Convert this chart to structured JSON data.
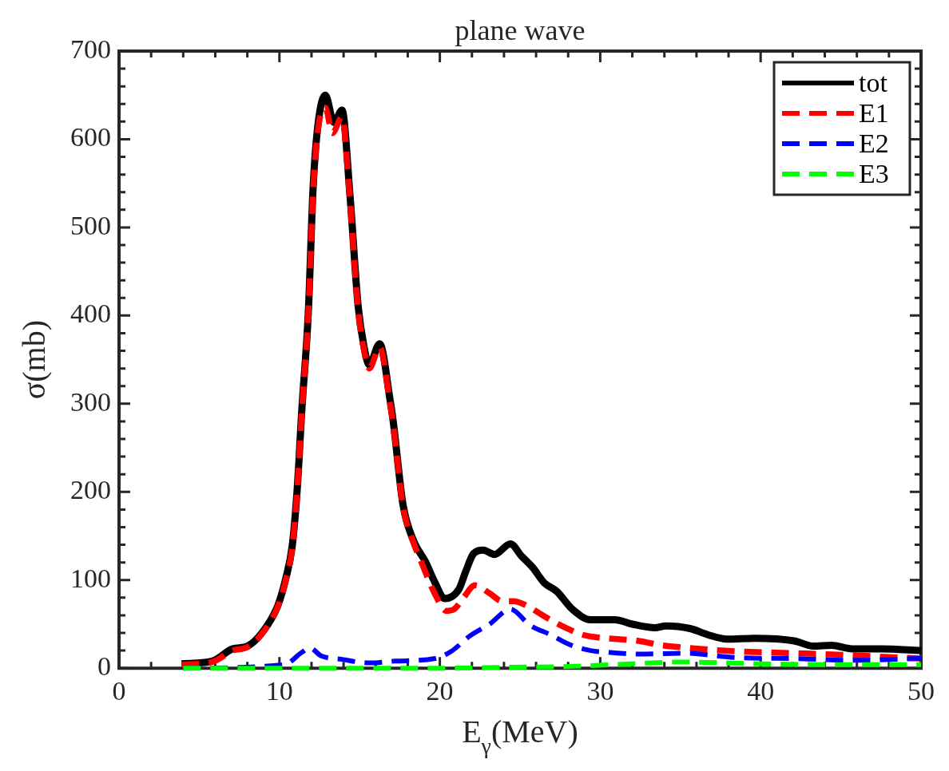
{
  "chart_data": {
    "type": "line",
    "title": "plane wave",
    "xlabel": "E$_{γ}$(MeV)",
    "ylabel": "σ(mb)",
    "xlim": [
      0,
      50
    ],
    "xticks": [
      0,
      {
        "value": 2,
        "label": null
      },
      {
        "value": 4,
        "label": null
      },
      {
        "value": 6,
        "label": null
      },
      {
        "value": 8,
        "label": null
      },
      10,
      {
        "value": 12,
        "label": null
      },
      {
        "value": 14,
        "label": null
      },
      {
        "value": 16,
        "label": null
      },
      {
        "value": 18,
        "label": null
      },
      20,
      {
        "value": 22,
        "label": null
      },
      {
        "value": 24,
        "label": null
      },
      {
        "value": 26,
        "label": null
      },
      {
        "value": 28,
        "label": null
      },
      30,
      {
        "value": 32,
        "label": null
      },
      {
        "value": 34,
        "label": null
      },
      {
        "value": 36,
        "label": null
      },
      {
        "value": 38,
        "label": null
      },
      40,
      {
        "value": 42,
        "label": null
      },
      {
        "value": 44,
        "label": null
      },
      {
        "value": 46,
        "label": null
      },
      {
        "value": 48,
        "label": null
      },
      50
    ],
    "ylim": [
      0,
      700
    ],
    "yticks": [
      0,
      {
        "value": 20,
        "label": null
      },
      {
        "value": 40,
        "label": null
      },
      {
        "value": 60,
        "label": null
      },
      {
        "value": 80,
        "label": null
      },
      100,
      {
        "value": 120,
        "label": null
      },
      {
        "value": 140,
        "label": null
      },
      {
        "value": 160,
        "label": null
      },
      {
        "value": 180,
        "label": null
      },
      200,
      {
        "value": 220,
        "label": null
      },
      {
        "value": 240,
        "label": null
      },
      {
        "value": 260,
        "label": null
      },
      {
        "value": 280,
        "label": null
      },
      300,
      {
        "value": 320,
        "label": null
      },
      {
        "value": 340,
        "label": null
      },
      {
        "value": 360,
        "label": null
      },
      {
        "value": 380,
        "label": null
      },
      400,
      {
        "value": 420,
        "label": null
      },
      {
        "value": 440,
        "label": null
      },
      {
        "value": 460,
        "label": null
      },
      {
        "value": 480,
        "label": null
      },
      500,
      {
        "value": 520,
        "label": null
      },
      {
        "value": 540,
        "label": null
      },
      {
        "value": 560,
        "label": null
      },
      {
        "value": 580,
        "label": null
      },
      600,
      {
        "value": 620,
        "label": null
      },
      {
        "value": 640,
        "label": null
      },
      {
        "value": 660,
        "label": null
      },
      {
        "value": 680,
        "label": null
      },
      700
    ],
    "grid": false,
    "legend": "top right",
    "marker": "none",
    "series": [
      {
        "name": "tot",
        "color": "#000000",
        "line_style": "solid",
        "x": [
          3.9,
          5.8,
          7.1,
          8.0,
          8.95,
          9.9,
          10.4,
          10.8,
          11.1,
          11.4,
          11.8,
          12.1,
          12.4,
          12.86,
          13.4,
          13.9,
          14.4,
          14.9,
          15.26,
          15.6,
          16.25,
          16.9,
          17.1,
          17.7,
          18.4,
          19.1,
          19.7,
          20.3,
          21.2,
          21.6,
          22.1,
          22.7,
          23.4,
          24.4,
          25.1,
          25.8,
          26.5,
          27.3,
          28.2,
          29.4,
          30.9,
          32.0,
          33.4,
          34.1,
          35.6,
          36.7,
          37.9,
          39.6,
          42.1,
          43.3,
          44.4,
          45.7,
          47.5,
          50
        ],
        "values": [
          5,
          8,
          22,
          25,
          41,
          71,
          102,
          139,
          201,
          294,
          403,
          545,
          616,
          650,
          619,
          633,
          536,
          412,
          366,
          344,
          368,
          304,
          279,
          186,
          143,
          121,
          97,
          79,
          90,
          109,
          130,
          134,
          129,
          141,
          127,
          114,
          97,
          87,
          68,
          55,
          55,
          50,
          46,
          48,
          45,
          38,
          33,
          34,
          31,
          25,
          26,
          22,
          22,
          20
        ]
      },
      {
        "name": "E1",
        "color": "#ff0000",
        "line_style": "dashed",
        "x": [
          3.9,
          5.8,
          7.1,
          8.0,
          8.95,
          9.9,
          10.4,
          10.8,
          11.1,
          11.4,
          11.8,
          12.1,
          12.4,
          12.86,
          13.3,
          13.9,
          14.4,
          14.9,
          15.26,
          15.6,
          16.25,
          16.9,
          17.1,
          17.7,
          18.4,
          18.7,
          19.7,
          20.4,
          20.9,
          21.4,
          22.2,
          23.1,
          23.9,
          24.6,
          25.4,
          26.5,
          27.6,
          28.9,
          29.8,
          32.4,
          33.8,
          34.9,
          37.6,
          40.3,
          43.9,
          50
        ],
        "values": [
          4,
          7,
          20,
          24,
          40,
          70,
          100,
          137,
          199,
          292,
          400,
          540,
          610,
          636,
          607,
          625,
          530,
          408,
          362,
          340,
          364,
          300,
          276,
          184,
          140,
          127,
          84,
          65,
          67,
          78,
          94,
          85,
          76,
          76,
          71,
          59,
          48,
          38,
          35,
          31,
          26,
          24,
          20,
          18,
          16,
          11
        ]
      },
      {
        "name": "E2",
        "color": "#0000ff",
        "line_style": "dashed",
        "x": [
          4,
          10.3,
          11.4,
          11.9,
          12.6,
          13.9,
          15.6,
          17.2,
          19.7,
          20.7,
          21.9,
          23.1,
          24.4,
          25.6,
          26.9,
          28.2,
          29.4,
          30.5,
          32.4,
          35.2,
          38.5,
          42.1,
          45.7,
          50
        ],
        "values": [
          0,
          4,
          18,
          23,
          14,
          10,
          6,
          8,
          11,
          19,
          37,
          50,
          67,
          49,
          38,
          26,
          20,
          18,
          16,
          17,
          12,
          11,
          9,
          11
        ]
      },
      {
        "name": "E3",
        "color": "#00ff00",
        "line_style": "dashed",
        "x": [
          4,
          10,
          20,
          24,
          28,
          32,
          35,
          40,
          45,
          50
        ],
        "values": [
          0,
          0,
          0,
          1,
          2,
          5,
          7,
          5,
          4,
          4
        ]
      }
    ]
  }
}
